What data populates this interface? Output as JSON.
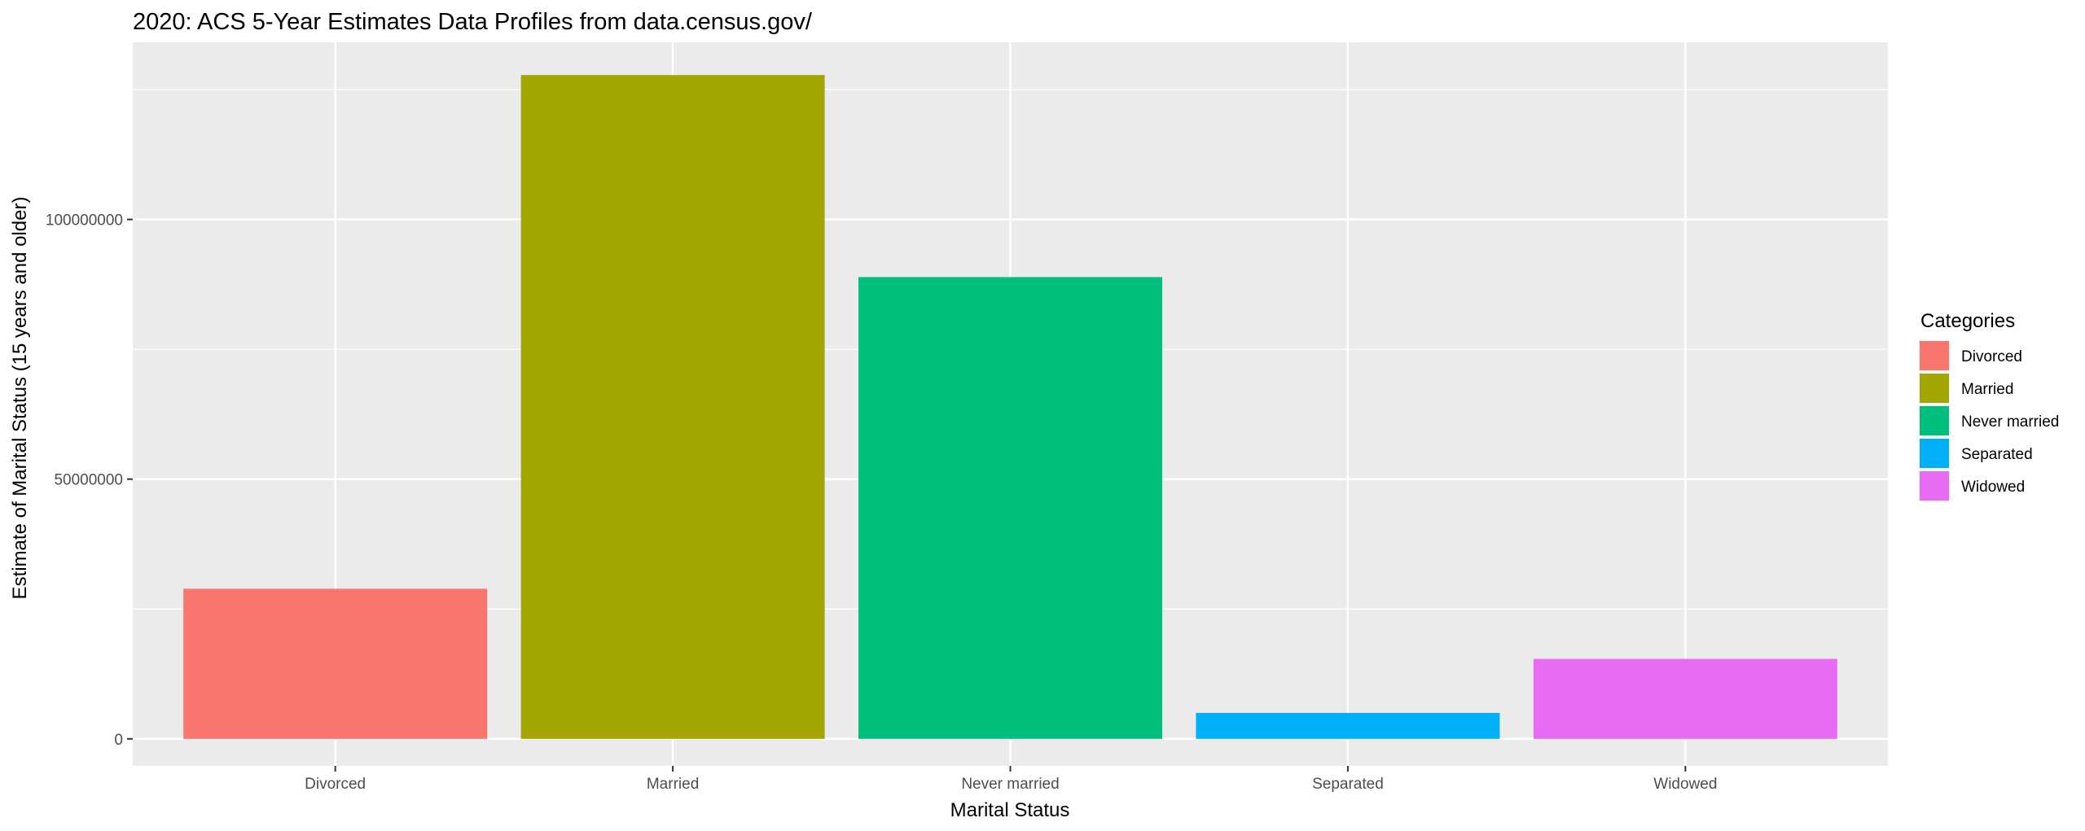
{
  "chart_data": {
    "type": "bar",
    "title": "2020: ACS 5-Year Estimates Data Profiles from data.census.gov/",
    "xlabel": "Marital Status",
    "ylabel": "Estimate of Marital Status (15 years and older)",
    "categories": [
      "Divorced",
      "Married",
      "Never married",
      "Separated",
      "Widowed"
    ],
    "values": [
      28900000,
      127800000,
      88900000,
      5000000,
      15400000
    ],
    "colors": [
      "#F8766D",
      "#A3A500",
      "#00BF7D",
      "#00B0F6",
      "#E76BF3"
    ],
    "ylim": [
      -5200000,
      134100000
    ],
    "yticks": [
      0,
      50000000,
      100000000
    ],
    "ytick_labels": [
      "0",
      "50000000",
      "100000000"
    ],
    "grid": true,
    "legend": {
      "title": "Categories",
      "position": "right",
      "entries": [
        "Divorced",
        "Married",
        "Never married",
        "Separated",
        "Widowed"
      ]
    },
    "panel_background": "#EBEBEB",
    "grid_color": "#FFFFFF"
  }
}
